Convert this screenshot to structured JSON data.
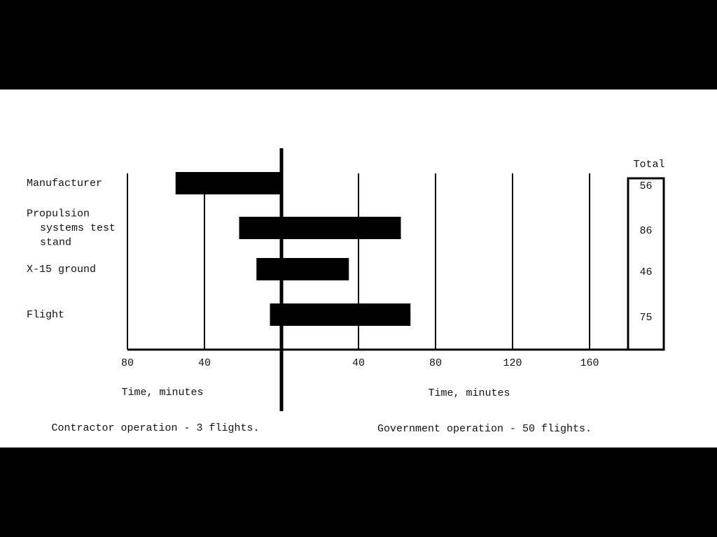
{
  "chart_data": {
    "type": "diverging-bar",
    "categories": [
      "Manufacturer",
      "Propulsion systems test stand",
      "X-15 ground",
      "Flight"
    ],
    "series": [
      {
        "name": "Contractor operation - 3 flights.",
        "color": "#000000",
        "values": [
          55,
          22,
          13,
          6
        ],
        "axis": "left"
      },
      {
        "name": "Government operation - 50 flights.",
        "color": "#000000",
        "values": [
          0,
          62,
          35,
          67
        ],
        "axis": "right"
      }
    ],
    "left_xlabel": "Time, minutes",
    "right_xlabel": "Time, minutes",
    "left_xlim": [
      80,
      0
    ],
    "left_xticks": [
      80,
      40
    ],
    "right_xlim": [
      0,
      180
    ],
    "right_xticks": [
      40,
      80,
      120,
      160
    ],
    "grid": true,
    "totals_title": "Total",
    "totals": [
      56,
      86,
      46,
      75
    ]
  }
}
